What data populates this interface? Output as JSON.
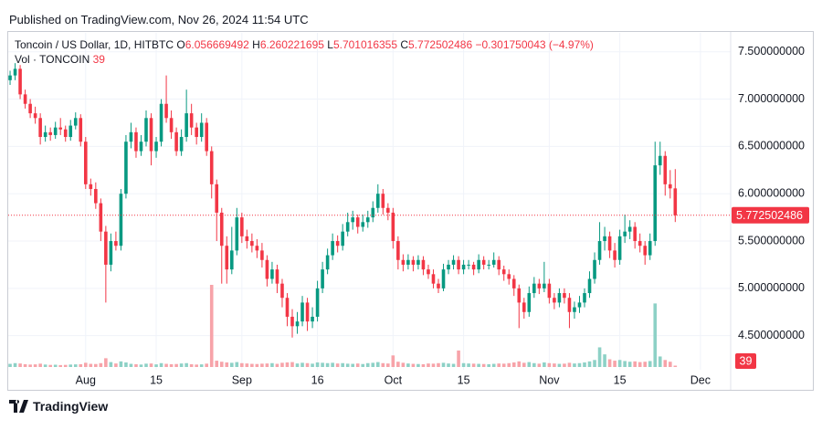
{
  "header": {
    "published": "Published on TradingView.com, Nov 26, 2024 11:54 UTC"
  },
  "chart_data": {
    "type": "candlestick",
    "title": "Toncoin / US Dollar, 1D, HITBTC",
    "ohlc_labels": [
      "O",
      "H",
      "L",
      "C"
    ],
    "change_label": "−0.301750043 (−4.97%)",
    "volume_label": "Vol · TONCOIN",
    "up_color": "#089981",
    "down_color": "#f23645",
    "volume_up_color": "#8dd1c6",
    "volume_down_color": "#f7a3a9",
    "grid": true,
    "last_price_line": true,
    "x": [
      "2024-07-17",
      "2024-07-18",
      "2024-07-19",
      "2024-07-20",
      "2024-07-21",
      "2024-07-22",
      "2024-07-23",
      "2024-07-24",
      "2024-07-25",
      "2024-07-26",
      "2024-07-27",
      "2024-07-28",
      "2024-07-29",
      "2024-07-30",
      "2024-07-31",
      "2024-08-01",
      "2024-08-02",
      "2024-08-03",
      "2024-08-04",
      "2024-08-05",
      "2024-08-06",
      "2024-08-07",
      "2024-08-08",
      "2024-08-09",
      "2024-08-10",
      "2024-08-11",
      "2024-08-12",
      "2024-08-13",
      "2024-08-14",
      "2024-08-15",
      "2024-08-16",
      "2024-08-17",
      "2024-08-18",
      "2024-08-19",
      "2024-08-20",
      "2024-08-21",
      "2024-08-22",
      "2024-08-23",
      "2024-08-24",
      "2024-08-25",
      "2024-08-26",
      "2024-08-27",
      "2024-08-28",
      "2024-08-29",
      "2024-08-30",
      "2024-08-31",
      "2024-09-01",
      "2024-09-02",
      "2024-09-03",
      "2024-09-04",
      "2024-09-05",
      "2024-09-06",
      "2024-09-07",
      "2024-09-08",
      "2024-09-09",
      "2024-09-10",
      "2024-09-11",
      "2024-09-12",
      "2024-09-13",
      "2024-09-14",
      "2024-09-15",
      "2024-09-16",
      "2024-09-17",
      "2024-09-18",
      "2024-09-19",
      "2024-09-20",
      "2024-09-21",
      "2024-09-22",
      "2024-09-23",
      "2024-09-24",
      "2024-09-25",
      "2024-09-26",
      "2024-09-27",
      "2024-09-28",
      "2024-09-29",
      "2024-09-30",
      "2024-10-01",
      "2024-10-02",
      "2024-10-03",
      "2024-10-04",
      "2024-10-05",
      "2024-10-06",
      "2024-10-07",
      "2024-10-08",
      "2024-10-09",
      "2024-10-10",
      "2024-10-11",
      "2024-10-12",
      "2024-10-13",
      "2024-10-14",
      "2024-10-15",
      "2024-10-16",
      "2024-10-17",
      "2024-10-18",
      "2024-10-19",
      "2024-10-20",
      "2024-10-21",
      "2024-10-22",
      "2024-10-23",
      "2024-10-24",
      "2024-10-25",
      "2024-10-26",
      "2024-10-27",
      "2024-10-28",
      "2024-10-29",
      "2024-10-30",
      "2024-10-31",
      "2024-11-01",
      "2024-11-02",
      "2024-11-03",
      "2024-11-04",
      "2024-11-05",
      "2024-11-06",
      "2024-11-07",
      "2024-11-08",
      "2024-11-09",
      "2024-11-10",
      "2024-11-11",
      "2024-11-12",
      "2024-11-13",
      "2024-11-14",
      "2024-11-15",
      "2024-11-16",
      "2024-11-17",
      "2024-11-18",
      "2024-11-19",
      "2024-11-20",
      "2024-11-21",
      "2024-11-22",
      "2024-11-23",
      "2024-11-24",
      "2024-11-25",
      "2024-11-26"
    ],
    "open": [
      7.2,
      7.25,
      7.32,
      7.05,
      6.95,
      6.85,
      6.8,
      6.6,
      6.65,
      6.62,
      6.7,
      6.68,
      6.6,
      6.72,
      6.8,
      6.55,
      6.1,
      6.05,
      5.9,
      5.6,
      5.25,
      5.5,
      5.45,
      6.0,
      6.55,
      6.65,
      6.45,
      6.55,
      6.8,
      6.45,
      6.55,
      6.95,
      6.8,
      6.65,
      6.45,
      6.6,
      6.85,
      6.7,
      6.6,
      6.75,
      6.45,
      6.1,
      5.8,
      5.45,
      5.2,
      5.4,
      5.75,
      5.55,
      5.5,
      5.45,
      5.4,
      5.3,
      5.1,
      5.2,
      5.05,
      4.9,
      4.7,
      4.6,
      4.65,
      4.85,
      4.65,
      4.7,
      5.0,
      5.2,
      5.35,
      5.5,
      5.45,
      5.6,
      5.7,
      5.75,
      5.65,
      5.7,
      5.75,
      5.85,
      6.0,
      5.85,
      5.8,
      5.5,
      5.3,
      5.25,
      5.3,
      5.25,
      5.3,
      5.2,
      5.15,
      5.05,
      5.0,
      5.2,
      5.25,
      5.3,
      5.2,
      5.25,
      5.25,
      5.2,
      5.3,
      5.25,
      5.25,
      5.3,
      5.2,
      5.15,
      5.1,
      5.0,
      4.85,
      4.75,
      4.95,
      5.05,
      5.0,
      5.05,
      4.9,
      4.85,
      4.95,
      4.9,
      4.75,
      4.8,
      4.85,
      4.95,
      5.1,
      5.3,
      5.5,
      5.55,
      5.4,
      5.3,
      5.55,
      5.6,
      5.65,
      5.5,
      5.45,
      5.35,
      5.5,
      6.3,
      6.4,
      6.1,
      6.056669492
    ],
    "high": [
      7.3,
      7.38,
      7.36,
      7.1,
      7.0,
      6.92,
      6.85,
      6.72,
      6.7,
      6.76,
      6.8,
      6.72,
      6.78,
      6.86,
      6.84,
      6.6,
      6.16,
      6.12,
      5.95,
      5.66,
      5.58,
      5.6,
      6.05,
      6.62,
      6.75,
      6.7,
      6.62,
      6.88,
      6.85,
      6.6,
      7.0,
      7.25,
      6.88,
      6.7,
      6.68,
      7.1,
      6.95,
      6.75,
      6.85,
      6.8,
      6.5,
      6.15,
      5.85,
      5.55,
      5.65,
      5.85,
      5.8,
      5.62,
      5.58,
      5.52,
      5.48,
      5.35,
      5.28,
      5.25,
      5.1,
      4.95,
      4.78,
      4.75,
      4.92,
      4.9,
      4.8,
      5.08,
      5.28,
      5.42,
      5.58,
      5.56,
      5.68,
      5.8,
      5.82,
      5.78,
      5.78,
      5.82,
      5.92,
      6.1,
      6.05,
      5.9,
      5.85,
      5.55,
      5.36,
      5.36,
      5.34,
      5.35,
      5.34,
      5.25,
      5.2,
      5.1,
      5.26,
      5.3,
      5.35,
      5.34,
      5.3,
      5.3,
      5.28,
      5.36,
      5.34,
      5.3,
      5.38,
      5.34,
      5.24,
      5.2,
      5.14,
      5.04,
      4.9,
      5.02,
      5.12,
      5.1,
      5.28,
      5.1,
      4.95,
      5.0,
      5.0,
      4.95,
      4.86,
      4.92,
      5.0,
      5.18,
      5.38,
      5.7,
      5.65,
      5.6,
      5.48,
      5.62,
      5.78,
      5.72,
      5.7,
      5.58,
      5.5,
      5.58,
      6.55,
      6.55,
      6.45,
      6.25,
      6.260221695
    ],
    "low": [
      7.15,
      7.2,
      7.0,
      6.9,
      6.8,
      6.74,
      6.52,
      6.55,
      6.56,
      6.58,
      6.62,
      6.55,
      6.56,
      6.68,
      6.5,
      6.05,
      5.98,
      5.84,
      5.5,
      4.85,
      5.18,
      5.4,
      5.4,
      5.95,
      6.48,
      6.38,
      6.4,
      6.5,
      6.3,
      6.38,
      6.5,
      6.75,
      6.58,
      6.4,
      6.4,
      6.55,
      6.62,
      6.52,
      6.55,
      6.4,
      5.95,
      5.5,
      5.05,
      5.05,
      5.15,
      5.35,
      5.48,
      5.42,
      5.38,
      5.32,
      5.22,
      5.02,
      5.05,
      4.95,
      4.8,
      4.6,
      4.48,
      4.52,
      4.6,
      4.55,
      4.58,
      4.65,
      4.95,
      5.15,
      5.3,
      5.38,
      5.4,
      5.55,
      5.62,
      5.58,
      5.6,
      5.64,
      5.7,
      5.8,
      5.78,
      5.72,
      5.42,
      5.2,
      5.18,
      5.2,
      5.18,
      5.2,
      5.14,
      5.1,
      5.0,
      4.95,
      4.97,
      5.15,
      5.2,
      5.15,
      5.15,
      5.2,
      5.14,
      5.16,
      5.2,
      5.2,
      5.22,
      5.14,
      5.08,
      5.04,
      4.92,
      4.58,
      4.68,
      4.7,
      4.9,
      4.94,
      4.96,
      4.84,
      4.78,
      4.8,
      4.84,
      4.58,
      4.68,
      4.74,
      4.8,
      4.9,
      5.05,
      5.25,
      5.4,
      5.32,
      5.22,
      5.25,
      5.48,
      5.52,
      5.42,
      5.38,
      5.25,
      5.3,
      5.45,
      6.2,
      5.98,
      5.95,
      5.701016355
    ],
    "close": [
      7.25,
      7.32,
      7.05,
      6.95,
      6.85,
      6.8,
      6.6,
      6.65,
      6.62,
      6.7,
      6.68,
      6.6,
      6.72,
      6.8,
      6.55,
      6.1,
      6.05,
      5.9,
      5.6,
      5.25,
      5.5,
      5.45,
      6.0,
      6.55,
      6.65,
      6.45,
      6.55,
      6.8,
      6.45,
      6.55,
      6.95,
      6.8,
      6.65,
      6.45,
      6.6,
      6.85,
      6.7,
      6.6,
      6.75,
      6.45,
      6.1,
      5.8,
      5.45,
      5.2,
      5.4,
      5.75,
      5.55,
      5.5,
      5.45,
      5.4,
      5.3,
      5.1,
      5.2,
      5.05,
      4.9,
      4.7,
      4.6,
      4.65,
      4.85,
      4.65,
      4.7,
      5.0,
      5.2,
      5.35,
      5.5,
      5.45,
      5.6,
      5.7,
      5.75,
      5.65,
      5.7,
      5.75,
      5.85,
      6.0,
      5.85,
      5.8,
      5.5,
      5.3,
      5.25,
      5.3,
      5.25,
      5.3,
      5.2,
      5.15,
      5.05,
      5.0,
      5.2,
      5.25,
      5.3,
      5.2,
      5.25,
      5.25,
      5.2,
      5.3,
      5.25,
      5.25,
      5.3,
      5.2,
      5.15,
      5.1,
      5.0,
      4.85,
      4.75,
      4.95,
      5.05,
      5.0,
      5.05,
      4.9,
      4.85,
      4.95,
      4.9,
      4.75,
      4.8,
      4.85,
      4.95,
      5.1,
      5.3,
      5.5,
      5.55,
      5.4,
      5.3,
      5.55,
      5.6,
      5.65,
      5.5,
      5.45,
      5.35,
      5.5,
      6.3,
      6.4,
      6.1,
      6.056669492,
      5.772502486
    ],
    "volume": [
      90,
      110,
      100,
      80,
      70,
      75,
      95,
      70,
      60,
      65,
      55,
      60,
      70,
      75,
      80,
      120,
      90,
      85,
      110,
      250,
      140,
      100,
      160,
      130,
      90,
      80,
      70,
      95,
      100,
      75,
      110,
      90,
      80,
      85,
      100,
      110,
      80,
      70,
      75,
      95,
      2340,
      180,
      150,
      130,
      120,
      140,
      110,
      100,
      90,
      85,
      95,
      100,
      110,
      90,
      120,
      130,
      140,
      100,
      120,
      110,
      95,
      130,
      120,
      110,
      120,
      100,
      110,
      95,
      90,
      100,
      85,
      110,
      120,
      140,
      110,
      100,
      330,
      150,
      120,
      100,
      90,
      85,
      80,
      100,
      95,
      110,
      120,
      100,
      90,
      470,
      110,
      100,
      95,
      90,
      85,
      80,
      90,
      100,
      95,
      110,
      130,
      160,
      120,
      140,
      110,
      95,
      130,
      110,
      100,
      90,
      95,
      120,
      100,
      110,
      130,
      160,
      200,
      560,
      360,
      220,
      180,
      200,
      170,
      150,
      160,
      140,
      150,
      170,
      1810,
      300,
      200,
      150,
      39
    ],
    "xlim": [
      "2024-07-15",
      "2024-12-07"
    ],
    "xticks": [
      {
        "value": "2024-08-01",
        "label": "Aug"
      },
      {
        "value": "2024-08-15",
        "label": "15"
      },
      {
        "value": "2024-09-01",
        "label": "Sep"
      },
      {
        "value": "2024-09-16",
        "label": "16"
      },
      {
        "value": "2024-10-01",
        "label": "Oct"
      },
      {
        "value": "2024-10-15",
        "label": "15"
      },
      {
        "value": "2024-11-01",
        "label": "Nov"
      },
      {
        "value": "2024-11-15",
        "label": "15"
      },
      {
        "value": "2024-12-01",
        "label": "Dec"
      }
    ],
    "ylim": [
      4.14,
      7.7
    ],
    "yticks": [
      {
        "value": 4.5,
        "label": "4.500000000"
      },
      {
        "value": 5,
        "label": "5.000000000"
      },
      {
        "value": 5.5,
        "label": "5.500000000"
      },
      {
        "value": 6,
        "label": "6.000000000"
      },
      {
        "value": 6.5,
        "label": "6.500000000"
      },
      {
        "value": 7,
        "label": "7.000000000"
      },
      {
        "value": 7.5,
        "label": "7.500000000"
      }
    ]
  },
  "footer": {
    "logo": "TradingView"
  }
}
